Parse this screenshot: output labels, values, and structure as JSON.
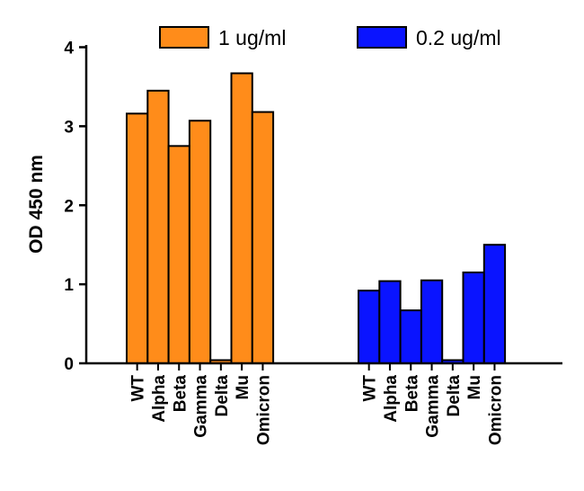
{
  "chart_data": {
    "type": "bar",
    "ylabel": "OD 450 nm",
    "xlabel": "",
    "ylim": [
      0,
      4
    ],
    "yticks": [
      "0",
      "1",
      "2",
      "3",
      "4"
    ],
    "legend_position": "top",
    "grid": false,
    "groups": [
      {
        "name": "1 ug/ml",
        "color": "#ff8c1a",
        "categories": [
          "WT",
          "Alpha",
          "Beta",
          "Gamma",
          "Delta",
          "Mu",
          "Omicron"
        ],
        "values": [
          3.16,
          3.45,
          2.75,
          3.07,
          0.04,
          3.67,
          3.18
        ]
      },
      {
        "name": "0.2 ug/ml",
        "color": "#0a14ff",
        "categories": [
          "WT",
          "Alpha",
          "Beta",
          "Gamma",
          "Delta",
          "Mu",
          "Omicron"
        ],
        "values": [
          0.92,
          1.04,
          0.67,
          1.05,
          0.04,
          1.15,
          1.5
        ]
      }
    ]
  }
}
